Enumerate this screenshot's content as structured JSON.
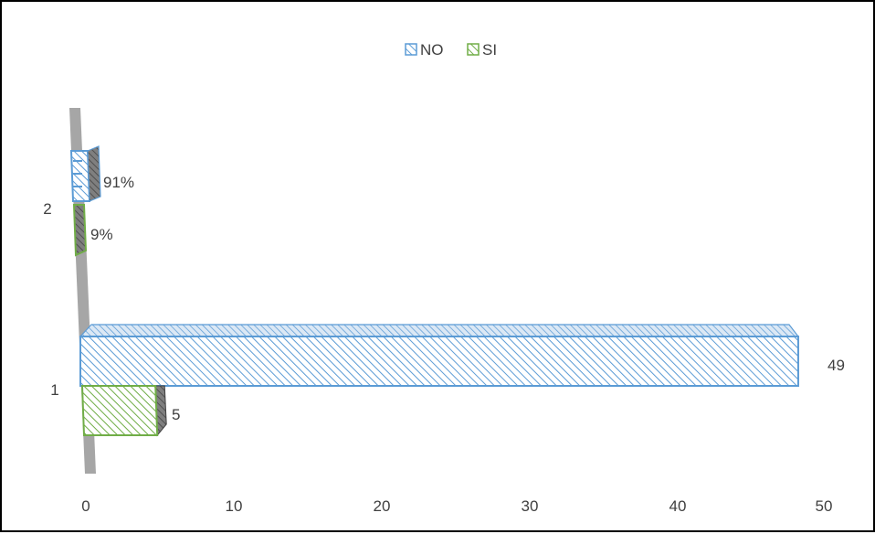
{
  "chart_data": {
    "type": "bar",
    "orientation": "horizontal",
    "categories": [
      "1",
      "2"
    ],
    "series": [
      {
        "name": "NO",
        "color": "#5b9bd5",
        "values": [
          49,
          0.91
        ],
        "data_labels": [
          "49",
          "91%"
        ]
      },
      {
        "name": "SI",
        "color": "#70ad47",
        "values": [
          5,
          0.09
        ],
        "data_labels": [
          "5",
          "9%"
        ]
      }
    ],
    "x_ticks": [
      "0",
      "10",
      "20",
      "30",
      "40",
      "50"
    ],
    "xlim": [
      0,
      50
    ],
    "legend": {
      "position": "top"
    },
    "grid": false,
    "style": "3d-hatched"
  }
}
